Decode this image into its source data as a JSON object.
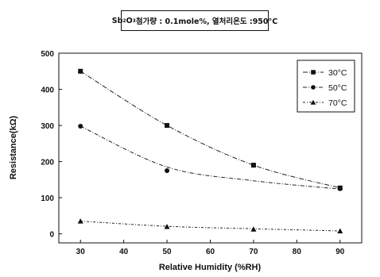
{
  "chart_data": {
    "type": "line",
    "title_parts": {
      "pre": "Sb",
      "sub1": "2",
      "mid": "O",
      "sub2": "3",
      "post": " 첨가량 : 0.1mole%, 열처리온도 :950°C"
    },
    "xlabel": "Relative Humidity (%RH)",
    "ylabel": "Resistance(kΩ)",
    "xlim": [
      25,
      95
    ],
    "ylim": [
      -25,
      500
    ],
    "xticks": [
      30,
      40,
      50,
      60,
      70,
      80,
      90
    ],
    "yticks": [
      0,
      100,
      200,
      300,
      400,
      500
    ],
    "x": [
      30,
      50,
      70,
      90
    ],
    "legend_position": "top-right",
    "series": [
      {
        "name": "30°C",
        "marker": "square",
        "values": [
          450,
          300,
          190,
          127
        ]
      },
      {
        "name": "50°C",
        "marker": "circle",
        "values": [
          298,
          175,
          190,
          125
        ]
      },
      {
        "name": "70°C",
        "marker": "triangle",
        "values": [
          35,
          20,
          13,
          8
        ]
      }
    ],
    "fitted_curves": [
      [
        [
          30,
          450
        ],
        [
          50,
          300
        ],
        [
          70,
          190
        ],
        [
          90,
          127
        ]
      ],
      [
        [
          30,
          298
        ],
        [
          50,
          185
        ],
        [
          70,
          147
        ],
        [
          90,
          124
        ]
      ],
      [
        [
          30,
          35
        ],
        [
          50,
          21
        ],
        [
          70,
          14
        ],
        [
          90,
          8
        ]
      ]
    ]
  }
}
